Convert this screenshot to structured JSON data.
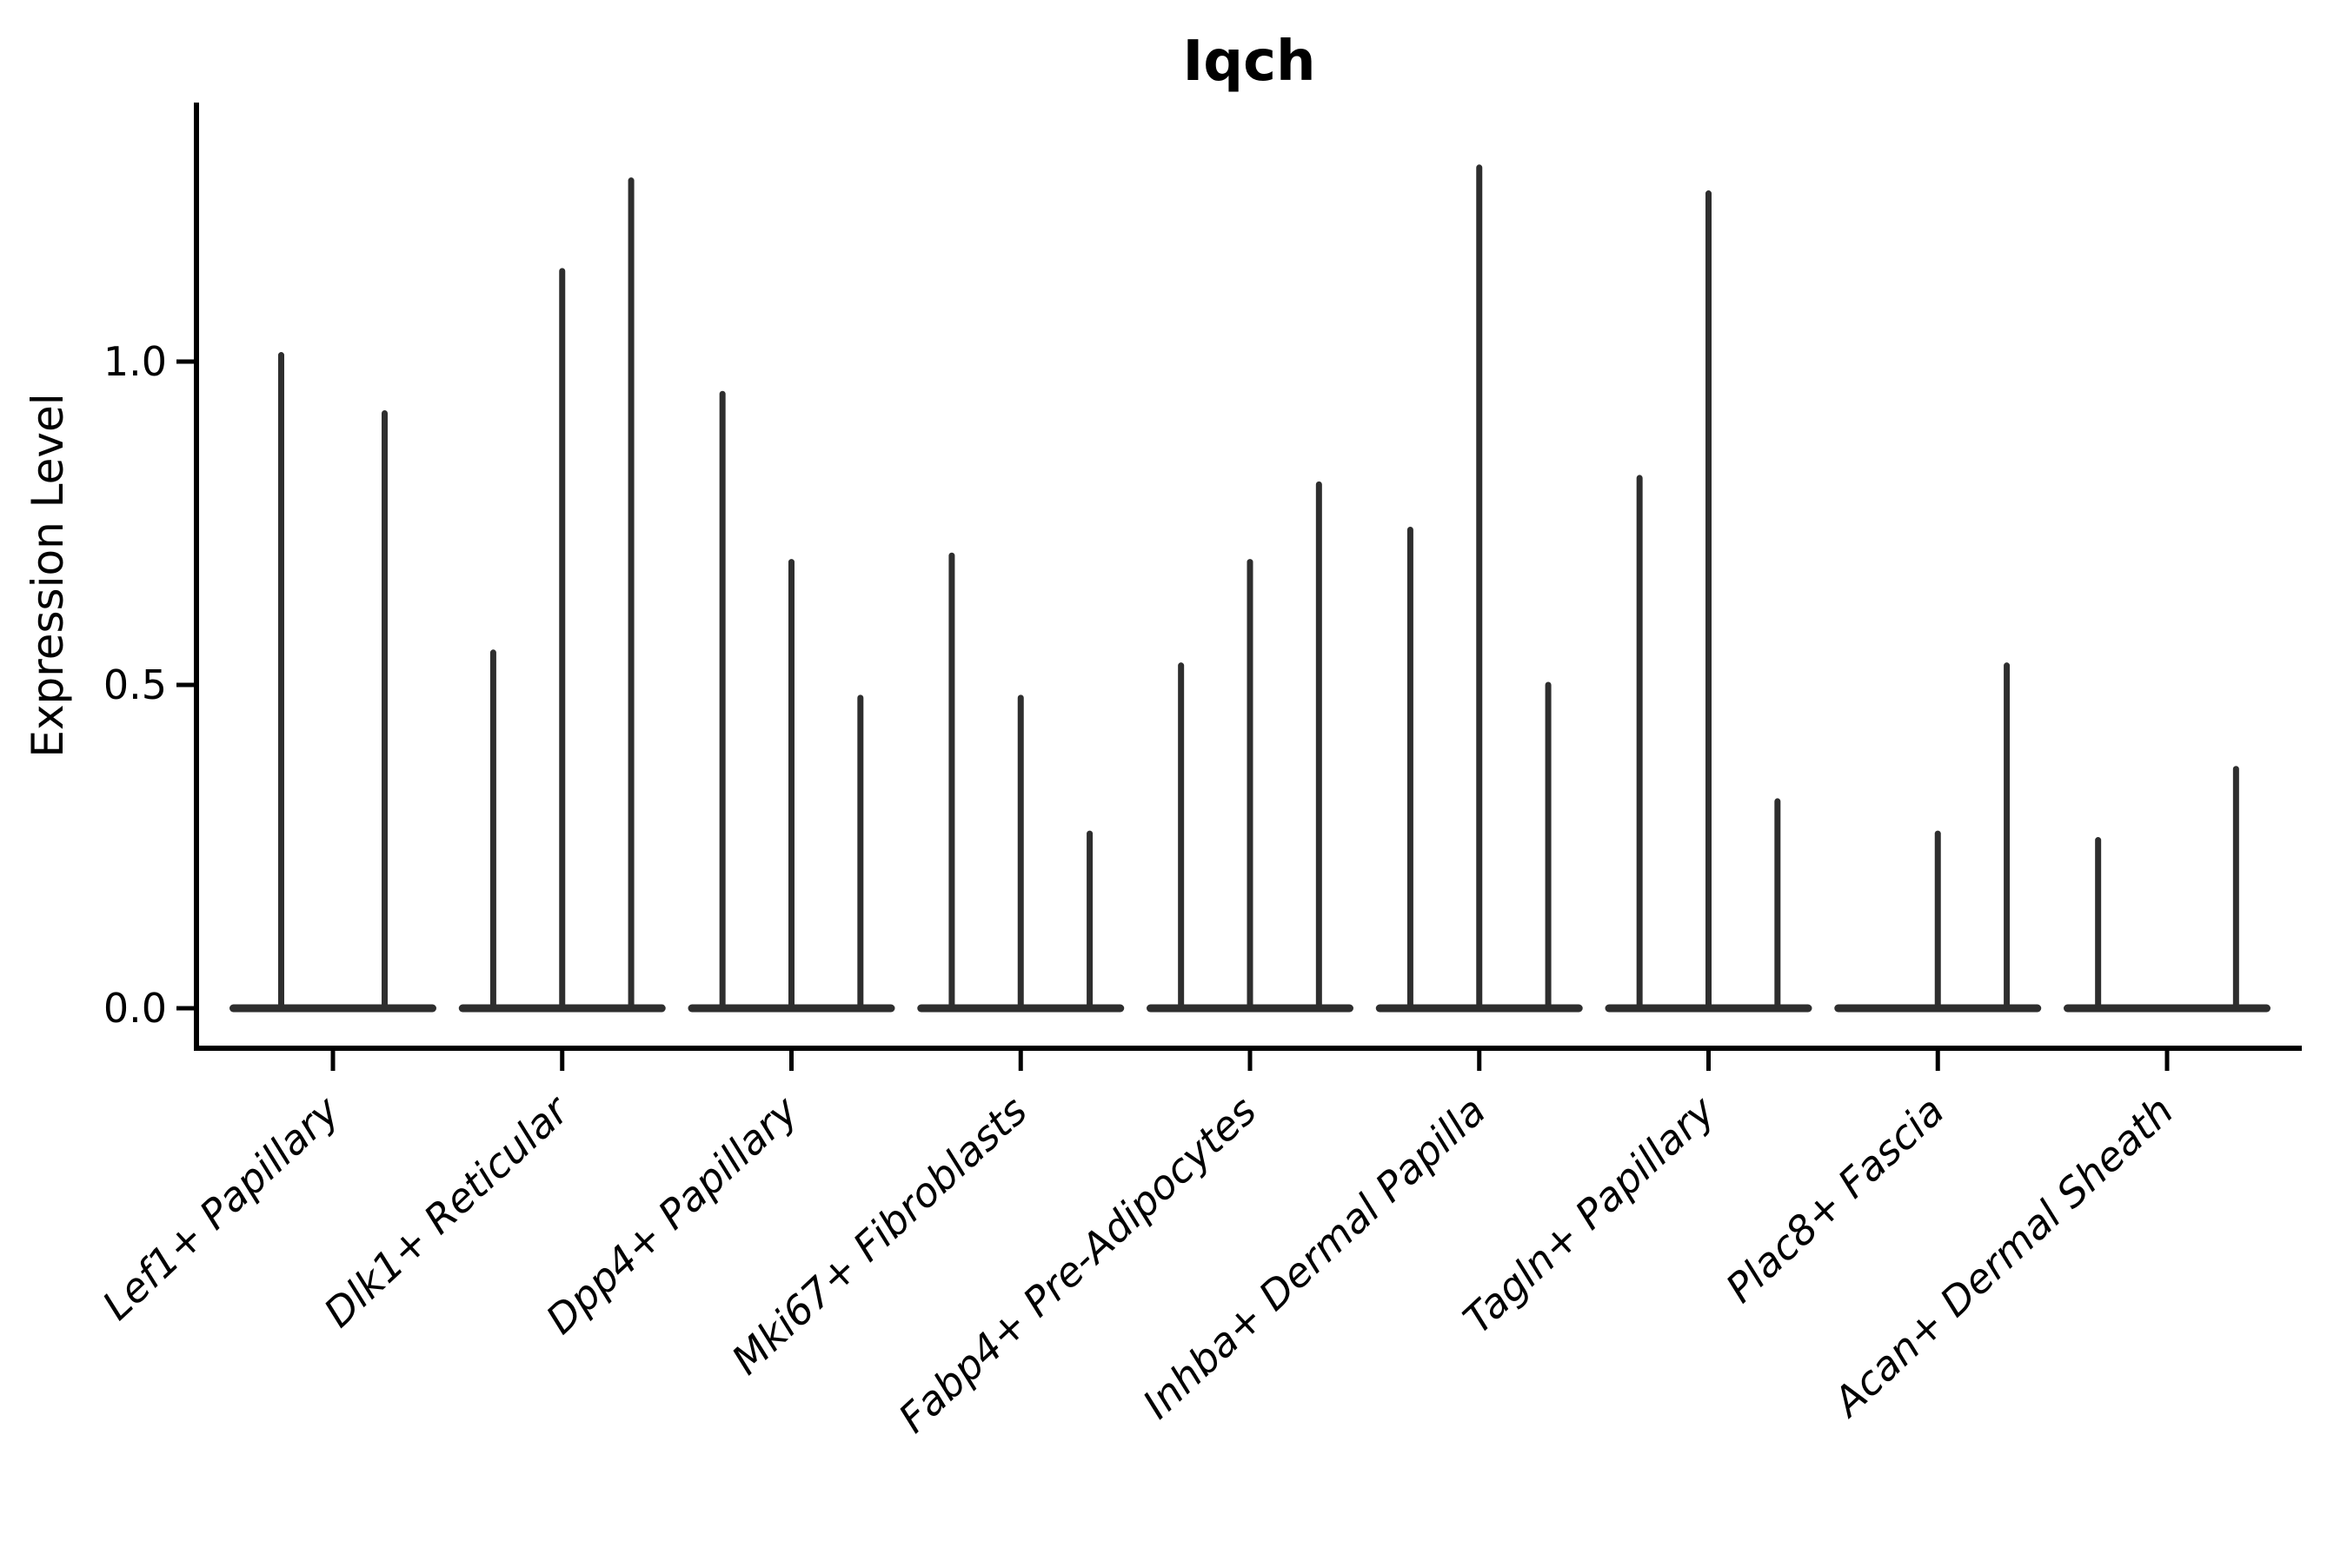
{
  "chart_data": {
    "type": "violin",
    "title": "Iqch",
    "xlabel": "",
    "ylabel": "Expression Level",
    "ytick_labels": [
      "0.0",
      "0.5",
      "1.0"
    ],
    "ytick_values": [
      0.0,
      0.5,
      1.0
    ],
    "ylim": [
      -0.065,
      1.4
    ],
    "grid": false,
    "legend": null,
    "x_tick_rotation_deg": 43,
    "groups": [
      {
        "label": "Lef1+ Papillary",
        "violin_max": [
          1.01,
          0.92
        ]
      },
      {
        "label": "Dlk1+ Reticular",
        "violin_max": [
          0.55,
          1.14,
          1.28
        ]
      },
      {
        "label": "Dpp4+ Papillary",
        "violin_max": [
          0.95,
          0.69,
          0.48
        ]
      },
      {
        "label": "Mki67+ Fibroblasts",
        "violin_max": [
          0.7,
          0.48,
          0.27
        ]
      },
      {
        "label": "Fabp4+ Pre-Adipocytes",
        "violin_max": [
          0.53,
          0.69,
          0.81
        ]
      },
      {
        "label": "Inhba+ Dermal Papilla",
        "violin_max": [
          0.74,
          1.3,
          0.5
        ]
      },
      {
        "label": "Tagln+ Papillary",
        "violin_max": [
          0.82,
          1.26,
          0.32
        ]
      },
      {
        "label": "Plac8+ Fascia",
        "violin_max": [
          0.0,
          0.27,
          0.53
        ]
      },
      {
        "label": "Acan+ Dermal Sheath",
        "violin_max": [
          0.26,
          0.0,
          0.37
        ]
      }
    ],
    "colors": {
      "violin": "#2e2e2e",
      "axis": "#000000",
      "text": "#000000",
      "background": "#ffffff"
    }
  }
}
